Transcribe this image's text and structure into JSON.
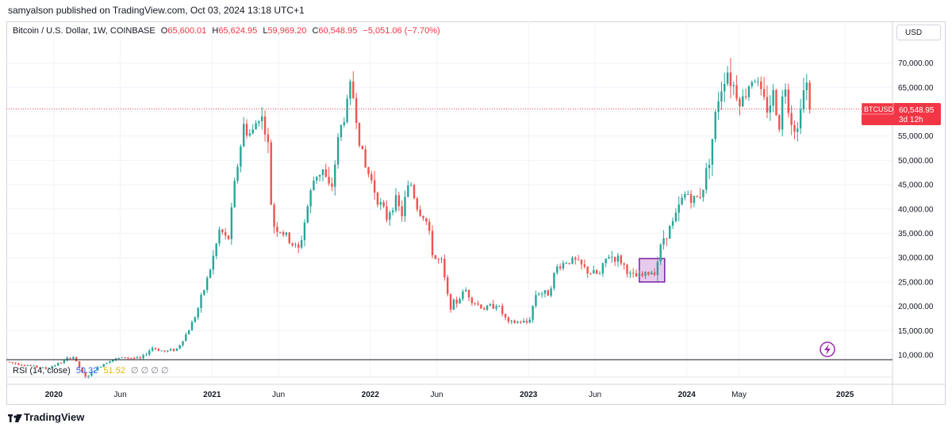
{
  "header": {
    "publish_line": "samyalson published on TradingView.com, Oct 03, 2024 13:18 UTC+1"
  },
  "legend": {
    "symbol": "Bitcoin / U.S. Dollar, 1W, COINBASE",
    "o_label": "O",
    "o_value": "65,600.01",
    "h_label": "H",
    "h_value": "65,624.95",
    "l_label": "L",
    "l_value": "59,969.20",
    "c_label": "C",
    "c_value": "60,548.95",
    "change": "−5,051.06 (−7.70%)"
  },
  "currency_button": "USD",
  "rsi": {
    "label": "RSI (14, close)",
    "value1": "50.32",
    "value2": "51.52",
    "placeholders": "∅ ∅ ∅ ∅"
  },
  "footer": {
    "brand": "TradingView"
  },
  "price_tag": {
    "symbol": "BTCUSD",
    "price": "60,548.95",
    "countdown": "3d 12h"
  },
  "colors": {
    "up": "#26a69a",
    "down": "#ef5350",
    "price_line": "#f23645",
    "highlight_fill": "#e1bee7",
    "highlight_stroke": "#7b1fa2"
  },
  "icons": {
    "lightning": "lightning-icon",
    "brand": "tradingview-logo-icon"
  },
  "chart_data": {
    "type": "candlestick",
    "title": "Bitcoin / U.S. Dollar, 1W, COINBASE",
    "ylim": [
      10000,
      74000
    ],
    "y_ticks": [
      10000,
      15000,
      20000,
      25000,
      30000,
      35000,
      40000,
      45000,
      50000,
      55000,
      60000,
      65000,
      70000
    ],
    "y_tick_labels": [
      "10,000.00",
      "15,000.00",
      "20,000.00",
      "25,000.00",
      "30,000.00",
      "35,000.00",
      "40,000.00",
      "45,000.00",
      "50,000.00",
      "55,000.00",
      "60,000.00",
      "65,000.00",
      "70,000.00"
    ],
    "x_labels": [
      "2020",
      "Jun",
      "2021",
      "Jun",
      "2022",
      "Jun",
      "2023",
      "Jun",
      "2024",
      "May",
      "2025"
    ],
    "x_label_years": [
      2020.0,
      2020.42,
      2021.0,
      2021.42,
      2022.0,
      2022.42,
      2023.0,
      2023.42,
      2024.0,
      2024.33,
      2025.0
    ],
    "xlim": [
      2019.7,
      2025.3
    ],
    "last_close": 60548.95,
    "highlight_box": {
      "x0": 2023.7,
      "x1": 2023.86,
      "y0": 25000,
      "y1": 29800
    },
    "price_path": [
      [
        2019.7,
        8600
      ],
      [
        2019.85,
        7800
      ],
      [
        2019.95,
        7200
      ],
      [
        2020.05,
        8500
      ],
      [
        2020.12,
        9800
      ],
      [
        2020.2,
        5200
      ],
      [
        2020.25,
        6800
      ],
      [
        2020.35,
        8900
      ],
      [
        2020.45,
        9500
      ],
      [
        2020.55,
        9200
      ],
      [
        2020.62,
        11500
      ],
      [
        2020.7,
        10700
      ],
      [
        2020.78,
        11300
      ],
      [
        2020.85,
        15000
      ],
      [
        2020.9,
        18500
      ],
      [
        2020.95,
        23500
      ],
      [
        2021.0,
        29000
      ],
      [
        2021.05,
        36000
      ],
      [
        2021.1,
        33000
      ],
      [
        2021.15,
        47000
      ],
      [
        2021.2,
        57000
      ],
      [
        2021.25,
        55000
      ],
      [
        2021.3,
        60000
      ],
      [
        2021.35,
        55000
      ],
      [
        2021.38,
        37000
      ],
      [
        2021.45,
        35000
      ],
      [
        2021.5,
        33000
      ],
      [
        2021.55,
        31500
      ],
      [
        2021.6,
        40000
      ],
      [
        2021.65,
        47000
      ],
      [
        2021.7,
        48000
      ],
      [
        2021.75,
        43000
      ],
      [
        2021.8,
        55000
      ],
      [
        2021.85,
        61000
      ],
      [
        2021.88,
        66000
      ],
      [
        2021.92,
        57000
      ],
      [
        2021.96,
        49000
      ],
      [
        2022.0,
        46500
      ],
      [
        2022.05,
        42000
      ],
      [
        2022.1,
        38000
      ],
      [
        2022.15,
        42000
      ],
      [
        2022.2,
        39000
      ],
      [
        2022.25,
        46000
      ],
      [
        2022.3,
        40000
      ],
      [
        2022.35,
        38000
      ],
      [
        2022.4,
        30000
      ],
      [
        2022.45,
        29000
      ],
      [
        2022.5,
        20000
      ],
      [
        2022.55,
        21000
      ],
      [
        2022.6,
        23500
      ],
      [
        2022.65,
        21000
      ],
      [
        2022.72,
        19500
      ],
      [
        2022.8,
        20500
      ],
      [
        2022.87,
        16500
      ],
      [
        2022.95,
        16800
      ],
      [
        2023.0,
        16600
      ],
      [
        2023.05,
        23000
      ],
      [
        2023.12,
        22500
      ],
      [
        2023.18,
        28000
      ],
      [
        2023.25,
        29500
      ],
      [
        2023.3,
        29200
      ],
      [
        2023.38,
        27000
      ],
      [
        2023.45,
        26500
      ],
      [
        2023.5,
        30500
      ],
      [
        2023.58,
        29500
      ],
      [
        2023.65,
        26000
      ],
      [
        2023.72,
        26200
      ],
      [
        2023.8,
        27500
      ],
      [
        2023.85,
        34000
      ],
      [
        2023.92,
        37500
      ],
      [
        2023.97,
        42000
      ],
      [
        2024.0,
        43500
      ],
      [
        2024.05,
        41500
      ],
      [
        2024.1,
        44000
      ],
      [
        2024.15,
        52000
      ],
      [
        2024.2,
        63000
      ],
      [
        2024.25,
        69000
      ],
      [
        2024.3,
        65000
      ],
      [
        2024.35,
        62000
      ],
      [
        2024.42,
        68000
      ],
      [
        2024.5,
        60500
      ],
      [
        2024.55,
        63500
      ],
      [
        2024.58,
        57000
      ],
      [
        2024.62,
        66000
      ],
      [
        2024.66,
        58500
      ],
      [
        2024.7,
        56000
      ],
      [
        2024.72,
        63000
      ],
      [
        2024.76,
        65600
      ],
      [
        2024.78,
        60548.95
      ]
    ]
  }
}
